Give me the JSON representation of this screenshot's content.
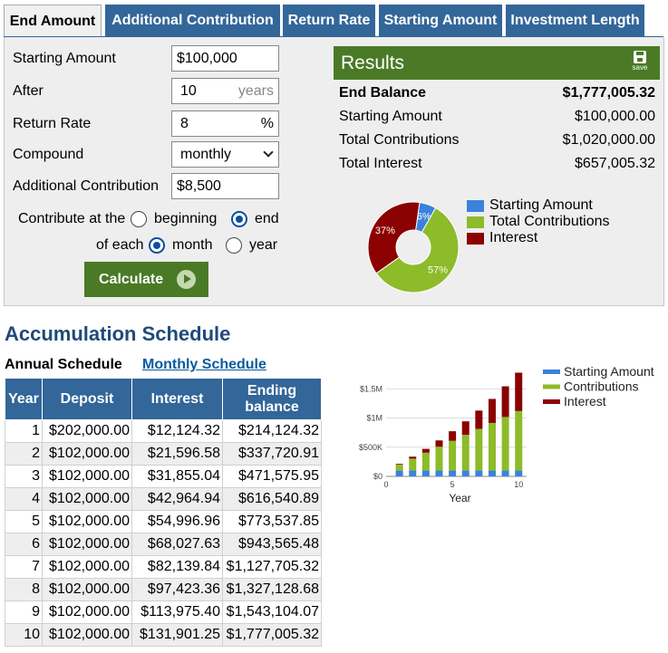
{
  "tabs": [
    "End Amount",
    "Additional Contribution",
    "Return Rate",
    "Starting Amount",
    "Investment Length"
  ],
  "form": {
    "starting_amount_label": "Starting Amount",
    "starting_amount_value": "$100,000",
    "after_label": "After",
    "after_value": "10",
    "after_suffix": "years",
    "return_rate_label": "Return Rate",
    "return_rate_value": "8",
    "return_rate_suffix": "%",
    "compound_label": "Compound",
    "compound_value": "monthly",
    "additional_label": "Additional Contribution",
    "additional_value": "$8,500",
    "contribute_at_label": "Contribute at the",
    "contribute_beginning": "beginning",
    "contribute_end": "end",
    "contribute_selected": "end",
    "of_each_label": "of each",
    "period_month": "month",
    "period_year": "year",
    "period_selected": "month",
    "calculate_label": "Calculate"
  },
  "results": {
    "title": "Results",
    "save_label": "save",
    "rows": [
      {
        "label": "End Balance",
        "value": "$1,777,005.32",
        "bold": true
      },
      {
        "label": "Starting Amount",
        "value": "$100,000.00"
      },
      {
        "label": "Total Contributions",
        "value": "$1,020,000.00"
      },
      {
        "label": "Total Interest",
        "value": "$657,005.32"
      }
    ]
  },
  "pie": {
    "slices": [
      {
        "name": "Starting Amount",
        "percent": 6,
        "label": "6%",
        "color": "#3b82dc"
      },
      {
        "name": "Total Contributions",
        "percent": 57,
        "label": "57%",
        "color": "#8dbb2a"
      },
      {
        "name": "Interest",
        "percent": 37,
        "label": "37%",
        "color": "#8b0000"
      }
    ]
  },
  "schedule": {
    "title": "Accumulation Schedule",
    "annual_label": "Annual Schedule",
    "monthly_label": "Monthly Schedule",
    "columns": [
      "Year",
      "Deposit",
      "Interest",
      "Ending balance"
    ],
    "rows": [
      [
        "1",
        "$202,000.00",
        "$12,124.32",
        "$214,124.32"
      ],
      [
        "2",
        "$102,000.00",
        "$21,596.58",
        "$337,720.91"
      ],
      [
        "3",
        "$102,000.00",
        "$31,855.04",
        "$471,575.95"
      ],
      [
        "4",
        "$102,000.00",
        "$42,964.94",
        "$616,540.89"
      ],
      [
        "5",
        "$102,000.00",
        "$54,996.96",
        "$773,537.85"
      ],
      [
        "6",
        "$102,000.00",
        "$68,027.63",
        "$943,565.48"
      ],
      [
        "7",
        "$102,000.00",
        "$82,139.84",
        "$1,127,705.32"
      ],
      [
        "8",
        "$102,000.00",
        "$97,423.36",
        "$1,327,128.68"
      ],
      [
        "9",
        "$102,000.00",
        "$113,975.40",
        "$1,543,104.07"
      ],
      [
        "10",
        "$102,000.00",
        "$131,901.25",
        "$1,777,005.32"
      ]
    ]
  },
  "chart_data": {
    "type": "bar",
    "stacked": true,
    "xlabel": "Year",
    "ylabel": "",
    "ylim": [
      0,
      1800000
    ],
    "x_ticks": [
      "0",
      "5",
      "10"
    ],
    "y_ticks": [
      {
        "label": "$0",
        "value": 0
      },
      {
        "label": "$500K",
        "value": 500000
      },
      {
        "label": "$1M",
        "value": 1000000
      },
      {
        "label": "$1.5M",
        "value": 1500000
      }
    ],
    "categories": [
      1,
      2,
      3,
      4,
      5,
      6,
      7,
      8,
      9,
      10
    ],
    "series": [
      {
        "name": "Starting Amount",
        "color": "#3b82dc",
        "values": [
          100000,
          100000,
          100000,
          100000,
          100000,
          100000,
          100000,
          100000,
          100000,
          100000
        ]
      },
      {
        "name": "Contributions",
        "color": "#8dbb2a",
        "values": [
          102000,
          204000,
          306000,
          408000,
          510000,
          612000,
          714000,
          816000,
          918000,
          1020000
        ]
      },
      {
        "name": "Interest",
        "color": "#8b0000",
        "values": [
          12124,
          33721,
          65576,
          108541,
          163538,
          231565,
          313705,
          411129,
          525104,
          657005
        ]
      }
    ],
    "legend": "top-right"
  }
}
